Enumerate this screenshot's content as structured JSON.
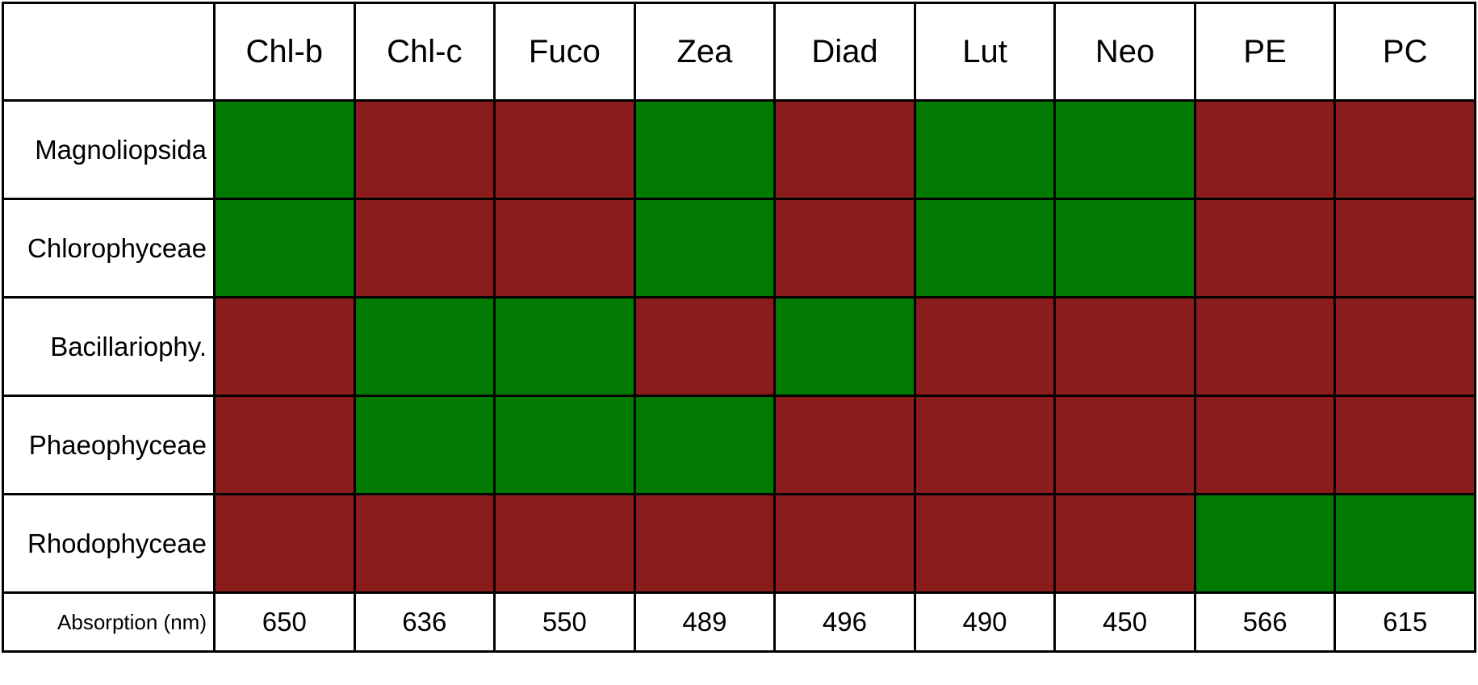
{
  "chart_data": {
    "type": "heatmap",
    "columns": [
      "Chl-b",
      "Chl-c",
      "Fuco",
      "Zea",
      "Diad",
      "Lut",
      "Neo",
      "PE",
      "PC"
    ],
    "rows": [
      "Magnoliopsida",
      "Chlorophyceae",
      "Bacillariophy.",
      "Phaeophyceae",
      "Rhodophyceae"
    ],
    "presence": [
      [
        1,
        0,
        0,
        1,
        0,
        1,
        1,
        0,
        0
      ],
      [
        1,
        0,
        0,
        1,
        0,
        1,
        1,
        0,
        0
      ],
      [
        0,
        1,
        1,
        0,
        1,
        0,
        0,
        0,
        0
      ],
      [
        0,
        1,
        1,
        1,
        0,
        0,
        0,
        0,
        0
      ],
      [
        0,
        0,
        0,
        0,
        0,
        0,
        0,
        1,
        1
      ]
    ],
    "absorption_label": "Absorption (nm)",
    "absorption_nm": [
      650,
      636,
      550,
      489,
      496,
      490,
      450,
      566,
      615
    ],
    "colors": {
      "present": "#027a02",
      "absent": "#8b1c1c"
    }
  }
}
